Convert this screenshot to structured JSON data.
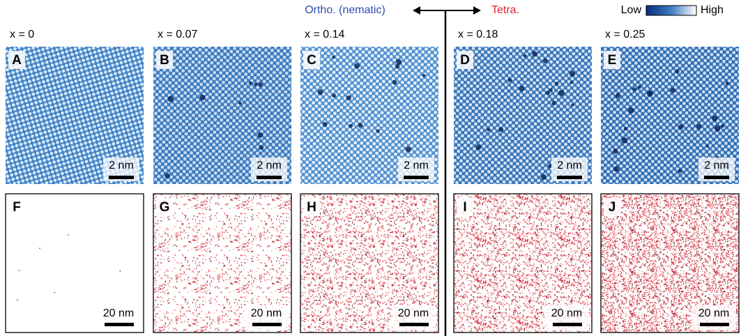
{
  "header": {
    "left_label": "Ortho. (nematic)",
    "right_label": "Tetra.",
    "colorbar": {
      "low": "Low",
      "high": "High"
    }
  },
  "columns": [
    {
      "label": "x = 0",
      "top": {
        "letter": "A",
        "scale": "2 nm"
      },
      "bottom": {
        "letter": "F",
        "scale": "20 nm"
      }
    },
    {
      "label": "x = 0.07",
      "top": {
        "letter": "B",
        "scale": "2 nm"
      },
      "bottom": {
        "letter": "G",
        "scale": "20 nm"
      }
    },
    {
      "label": "x = 0.14",
      "top": {
        "letter": "C",
        "scale": "2 nm"
      },
      "bottom": {
        "letter": "H",
        "scale": "20 nm"
      }
    },
    {
      "label": "x = 0.18",
      "top": {
        "letter": "D",
        "scale": "2 nm"
      },
      "bottom": {
        "letter": "I",
        "scale": "20 nm"
      }
    },
    {
      "label": "x = 0.25",
      "top": {
        "letter": "E",
        "scale": "2 nm"
      },
      "bottom": {
        "letter": "J",
        "scale": "20 nm"
      }
    }
  ]
}
